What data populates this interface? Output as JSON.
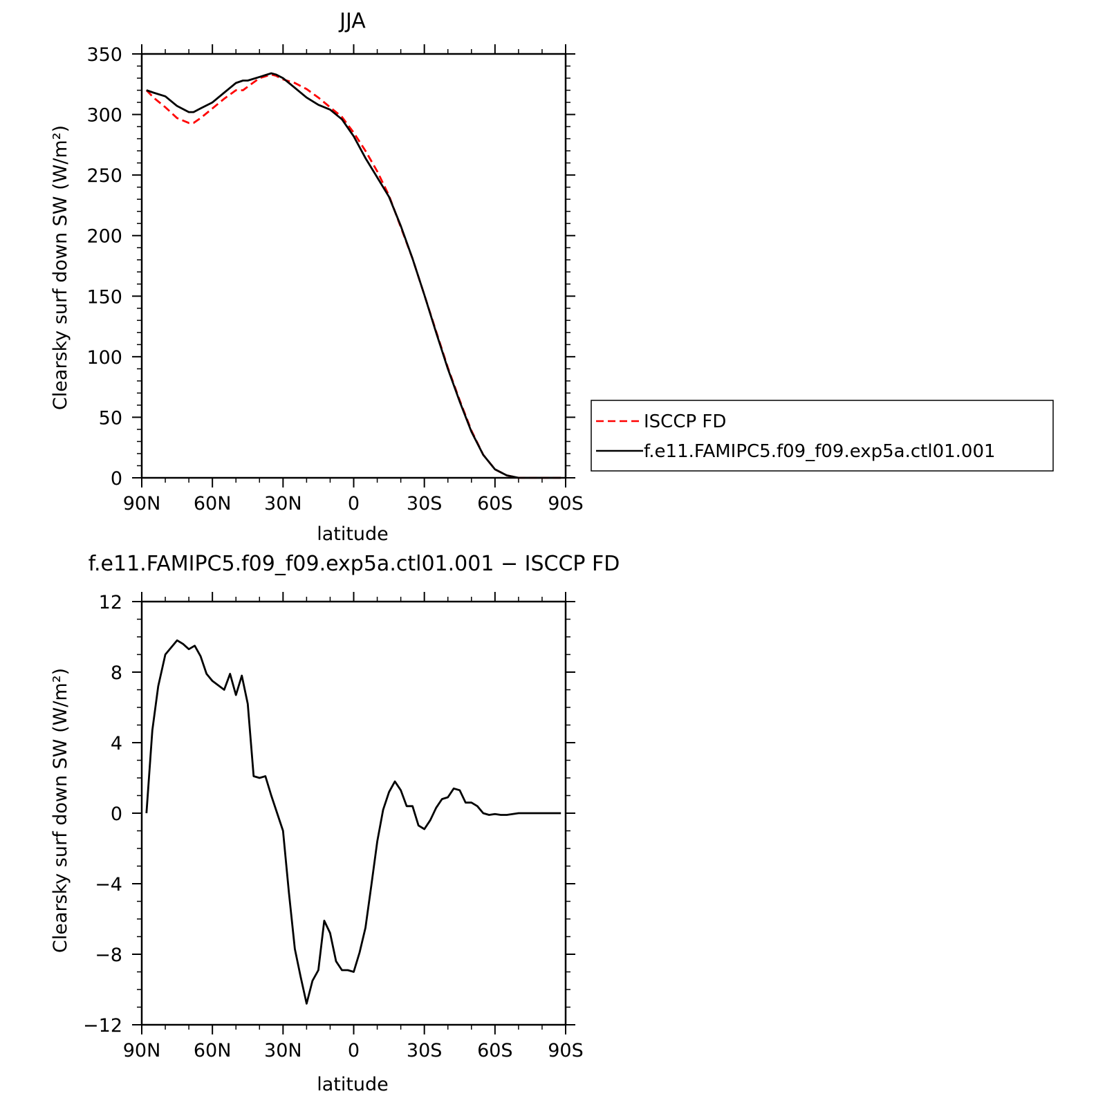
{
  "chart_data": [
    {
      "type": "line",
      "title": "JJA",
      "xlabel": "latitude",
      "ylabel": "Clearsky surf down SW (W/m²)",
      "xlim": [
        90,
        -90
      ],
      "ylim": [
        0,
        350
      ],
      "xticks": [
        90,
        60,
        30,
        0,
        -30,
        -60,
        -90
      ],
      "xtick_labels": [
        "90N",
        "60N",
        "30N",
        "0",
        "30S",
        "60S",
        "90S"
      ],
      "yticks": [
        0,
        50,
        100,
        150,
        200,
        250,
        300,
        350
      ],
      "ytick_labels": [
        "0",
        "50",
        "100",
        "150",
        "200",
        "250",
        "300",
        "350"
      ],
      "legend_position": "right",
      "series": [
        {
          "name": "ISCCP FD",
          "color": "#ff0000",
          "style": "dashed",
          "x": [
            88,
            85,
            80,
            75,
            70,
            68,
            65,
            60,
            55,
            50,
            47,
            45,
            40,
            35,
            33,
            30,
            25,
            20,
            15,
            10,
            5,
            0,
            -5,
            -10,
            -15,
            -20,
            -25,
            -30,
            -35,
            -40,
            -45,
            -50,
            -55,
            -60,
            -65,
            -70,
            -75,
            -80,
            -85,
            -88
          ],
          "y": [
            320,
            314,
            306,
            297,
            293,
            293,
            297,
            305,
            313,
            320,
            320,
            323,
            330,
            333,
            332,
            329,
            326,
            321,
            314,
            306,
            298,
            285,
            270,
            253,
            233,
            207,
            181,
            151,
            121,
            91,
            64,
            39,
            19,
            7,
            2,
            0,
            0,
            0,
            0,
            0
          ]
        },
        {
          "name": "f.e11.FAMIPC5.f09_f09.exp5a.ctl01.001",
          "color": "#000000",
          "style": "solid",
          "x": [
            88,
            85,
            80,
            75,
            70,
            68,
            65,
            60,
            55,
            50,
            47,
            45,
            40,
            35,
            33,
            30,
            25,
            20,
            15,
            10,
            5,
            0,
            -5,
            -10,
            -15,
            -20,
            -25,
            -30,
            -35,
            -40,
            -45,
            -50,
            -55,
            -60,
            -65,
            -70,
            -75,
            -80,
            -85,
            -88
          ],
          "y": [
            320,
            318,
            315,
            307,
            302,
            302,
            305,
            310,
            318,
            326,
            328,
            328,
            331,
            334,
            333,
            330,
            322,
            314,
            308,
            304,
            296,
            282,
            264,
            248,
            232,
            208,
            181,
            151,
            120,
            90,
            63,
            38,
            19,
            7,
            2,
            0,
            0,
            0,
            0,
            0
          ]
        }
      ]
    },
    {
      "type": "line",
      "title": "f.e11.FAMIPC5.f09_f09.exp5a.ctl01.001 − ISCCP FD",
      "xlabel": "latitude",
      "ylabel": "Clearsky surf down SW (W/m²)",
      "xlim": [
        90,
        -90
      ],
      "ylim": [
        -12,
        12
      ],
      "xticks": [
        90,
        60,
        30,
        0,
        -30,
        -60,
        -90
      ],
      "xtick_labels": [
        "90N",
        "60N",
        "30N",
        "0",
        "30S",
        "60S",
        "90S"
      ],
      "yticks": [
        -12,
        -8,
        -4,
        0,
        4,
        8,
        12
      ],
      "ytick_labels": [
        "−12",
        "−8",
        "−4",
        "0",
        "4",
        "8",
        "12"
      ],
      "series": [
        {
          "color": "#000000",
          "style": "solid",
          "x": [
            88,
            85.5,
            83,
            80,
            75,
            72.5,
            70,
            67.5,
            65,
            62.5,
            60,
            55,
            52.5,
            50,
            47.5,
            45,
            42.5,
            40,
            37.5,
            35,
            30,
            27.5,
            25,
            22.5,
            20,
            17.5,
            15,
            12.5,
            10,
            7.5,
            5,
            2.5,
            0,
            -2.5,
            -5,
            -7.5,
            -10,
            -12.5,
            -15,
            -17.5,
            -20,
            -22.5,
            -25,
            -27.5,
            -30,
            -32.5,
            -35,
            -37.5,
            -40,
            -42.5,
            -45,
            -47.5,
            -50,
            -52.5,
            -55,
            -57.5,
            -60,
            -62.5,
            -65,
            -67.5,
            -70,
            -75,
            -80,
            -85,
            -88
          ],
          "y": [
            0,
            4.7,
            7.2,
            9.0,
            9.8,
            9.6,
            9.3,
            9.5,
            8.9,
            7.9,
            7.5,
            7.0,
            7.9,
            6.7,
            7.8,
            6.2,
            2.1,
            2.0,
            2.1,
            1.0,
            -1.0,
            -4.5,
            -7.7,
            -9.3,
            -10.8,
            -9.5,
            -8.9,
            -6.1,
            -6.8,
            -8.4,
            -8.9,
            -8.9,
            -9.0,
            -7.9,
            -6.5,
            -4.1,
            -1.6,
            0.2,
            1.2,
            1.8,
            1.3,
            0.4,
            0.4,
            -0.7,
            -0.9,
            -0.4,
            0.3,
            0.8,
            0.9,
            1.4,
            1.3,
            0.6,
            0.6,
            0.4,
            0.0,
            -0.1,
            -0.05,
            -0.1,
            -0.1,
            -0.05,
            0.0,
            0.0,
            0.0,
            0.0,
            0.0
          ]
        }
      ]
    }
  ]
}
